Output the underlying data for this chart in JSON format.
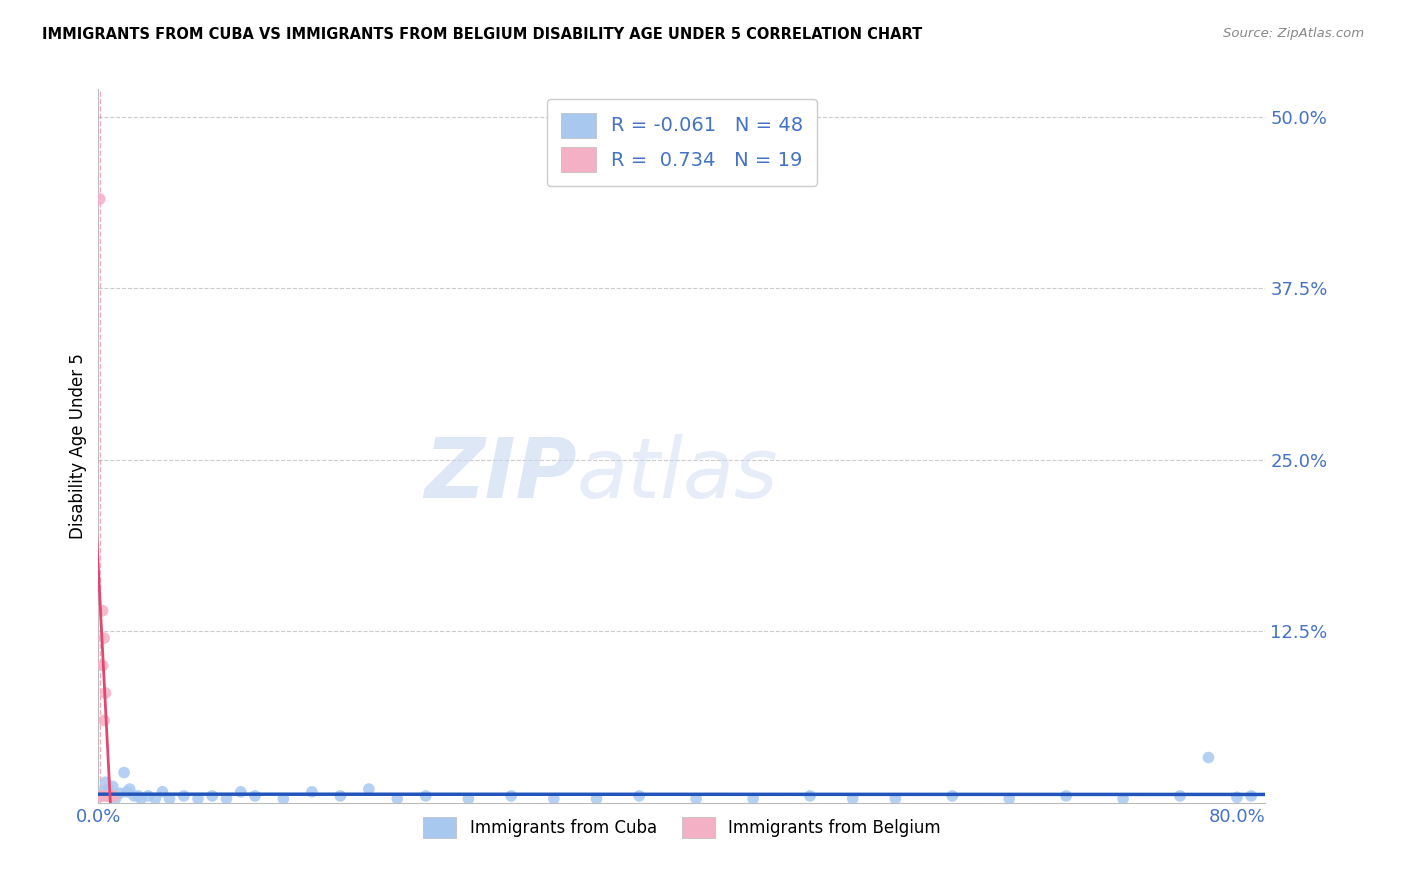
{
  "title": "IMMIGRANTS FROM CUBA VS IMMIGRANTS FROM BELGIUM DISABILITY AGE UNDER 5 CORRELATION CHART",
  "source": "Source: ZipAtlas.com",
  "ylabel": "Disability Age Under 5",
  "legend_labels": [
    "Immigrants from Cuba",
    "Immigrants from Belgium"
  ],
  "cuba_color": "#a8c8f0",
  "belgium_color": "#f4b0c4",
  "cuba_line_color": "#2255bb",
  "belgium_line_color": "#e04870",
  "axis_label_color": "#4472c4",
  "xlim": [
    0.0,
    0.82
  ],
  "ylim": [
    0.0,
    0.52
  ],
  "xtick_positions": [
    0.0,
    0.8
  ],
  "xtick_labels": [
    "0.0%",
    "80.0%"
  ],
  "yticks": [
    0.0,
    0.125,
    0.25,
    0.375,
    0.5
  ],
  "ytick_labels": [
    "",
    "12.5%",
    "25.0%",
    "37.5%",
    "50.0%"
  ],
  "grid_color": "#cccccc",
  "background": "#ffffff",
  "cuba_x": [
    0.002,
    0.003,
    0.005,
    0.007,
    0.008,
    0.01,
    0.012,
    0.015,
    0.018,
    0.02,
    0.022,
    0.025,
    0.028,
    0.03,
    0.035,
    0.04,
    0.045,
    0.05,
    0.06,
    0.07,
    0.08,
    0.09,
    0.1,
    0.11,
    0.13,
    0.15,
    0.17,
    0.19,
    0.21,
    0.23,
    0.26,
    0.29,
    0.32,
    0.35,
    0.38,
    0.42,
    0.46,
    0.5,
    0.53,
    0.56,
    0.6,
    0.64,
    0.68,
    0.72,
    0.76,
    0.78,
    0.8,
    0.81
  ],
  "cuba_y": [
    0.005,
    0.008,
    0.015,
    0.01,
    0.005,
    0.012,
    0.003,
    0.007,
    0.022,
    0.008,
    0.01,
    0.005,
    0.005,
    0.003,
    0.005,
    0.003,
    0.008,
    0.003,
    0.005,
    0.003,
    0.005,
    0.003,
    0.008,
    0.005,
    0.003,
    0.008,
    0.005,
    0.01,
    0.003,
    0.005,
    0.003,
    0.005,
    0.003,
    0.003,
    0.005,
    0.003,
    0.003,
    0.005,
    0.003,
    0.003,
    0.005,
    0.003,
    0.005,
    0.003,
    0.005,
    0.033,
    0.004,
    0.005
  ],
  "belgium_x": [
    0.001,
    0.002,
    0.002,
    0.003,
    0.003,
    0.004,
    0.004,
    0.005,
    0.005,
    0.006,
    0.006,
    0.007,
    0.007,
    0.008,
    0.008,
    0.009,
    0.009,
    0.01,
    0.011
  ],
  "belgium_y": [
    0.44,
    0.005,
    0.005,
    0.14,
    0.1,
    0.12,
    0.06,
    0.08,
    0.005,
    0.005,
    0.005,
    0.005,
    0.005,
    0.005,
    0.005,
    0.005,
    0.005,
    0.005,
    0.005
  ],
  "watermark_text": "ZIPatlas",
  "marker_size": 70,
  "r_cuba": "-0.061",
  "n_cuba": "48",
  "r_belgium": "0.734",
  "n_belgium": "19"
}
